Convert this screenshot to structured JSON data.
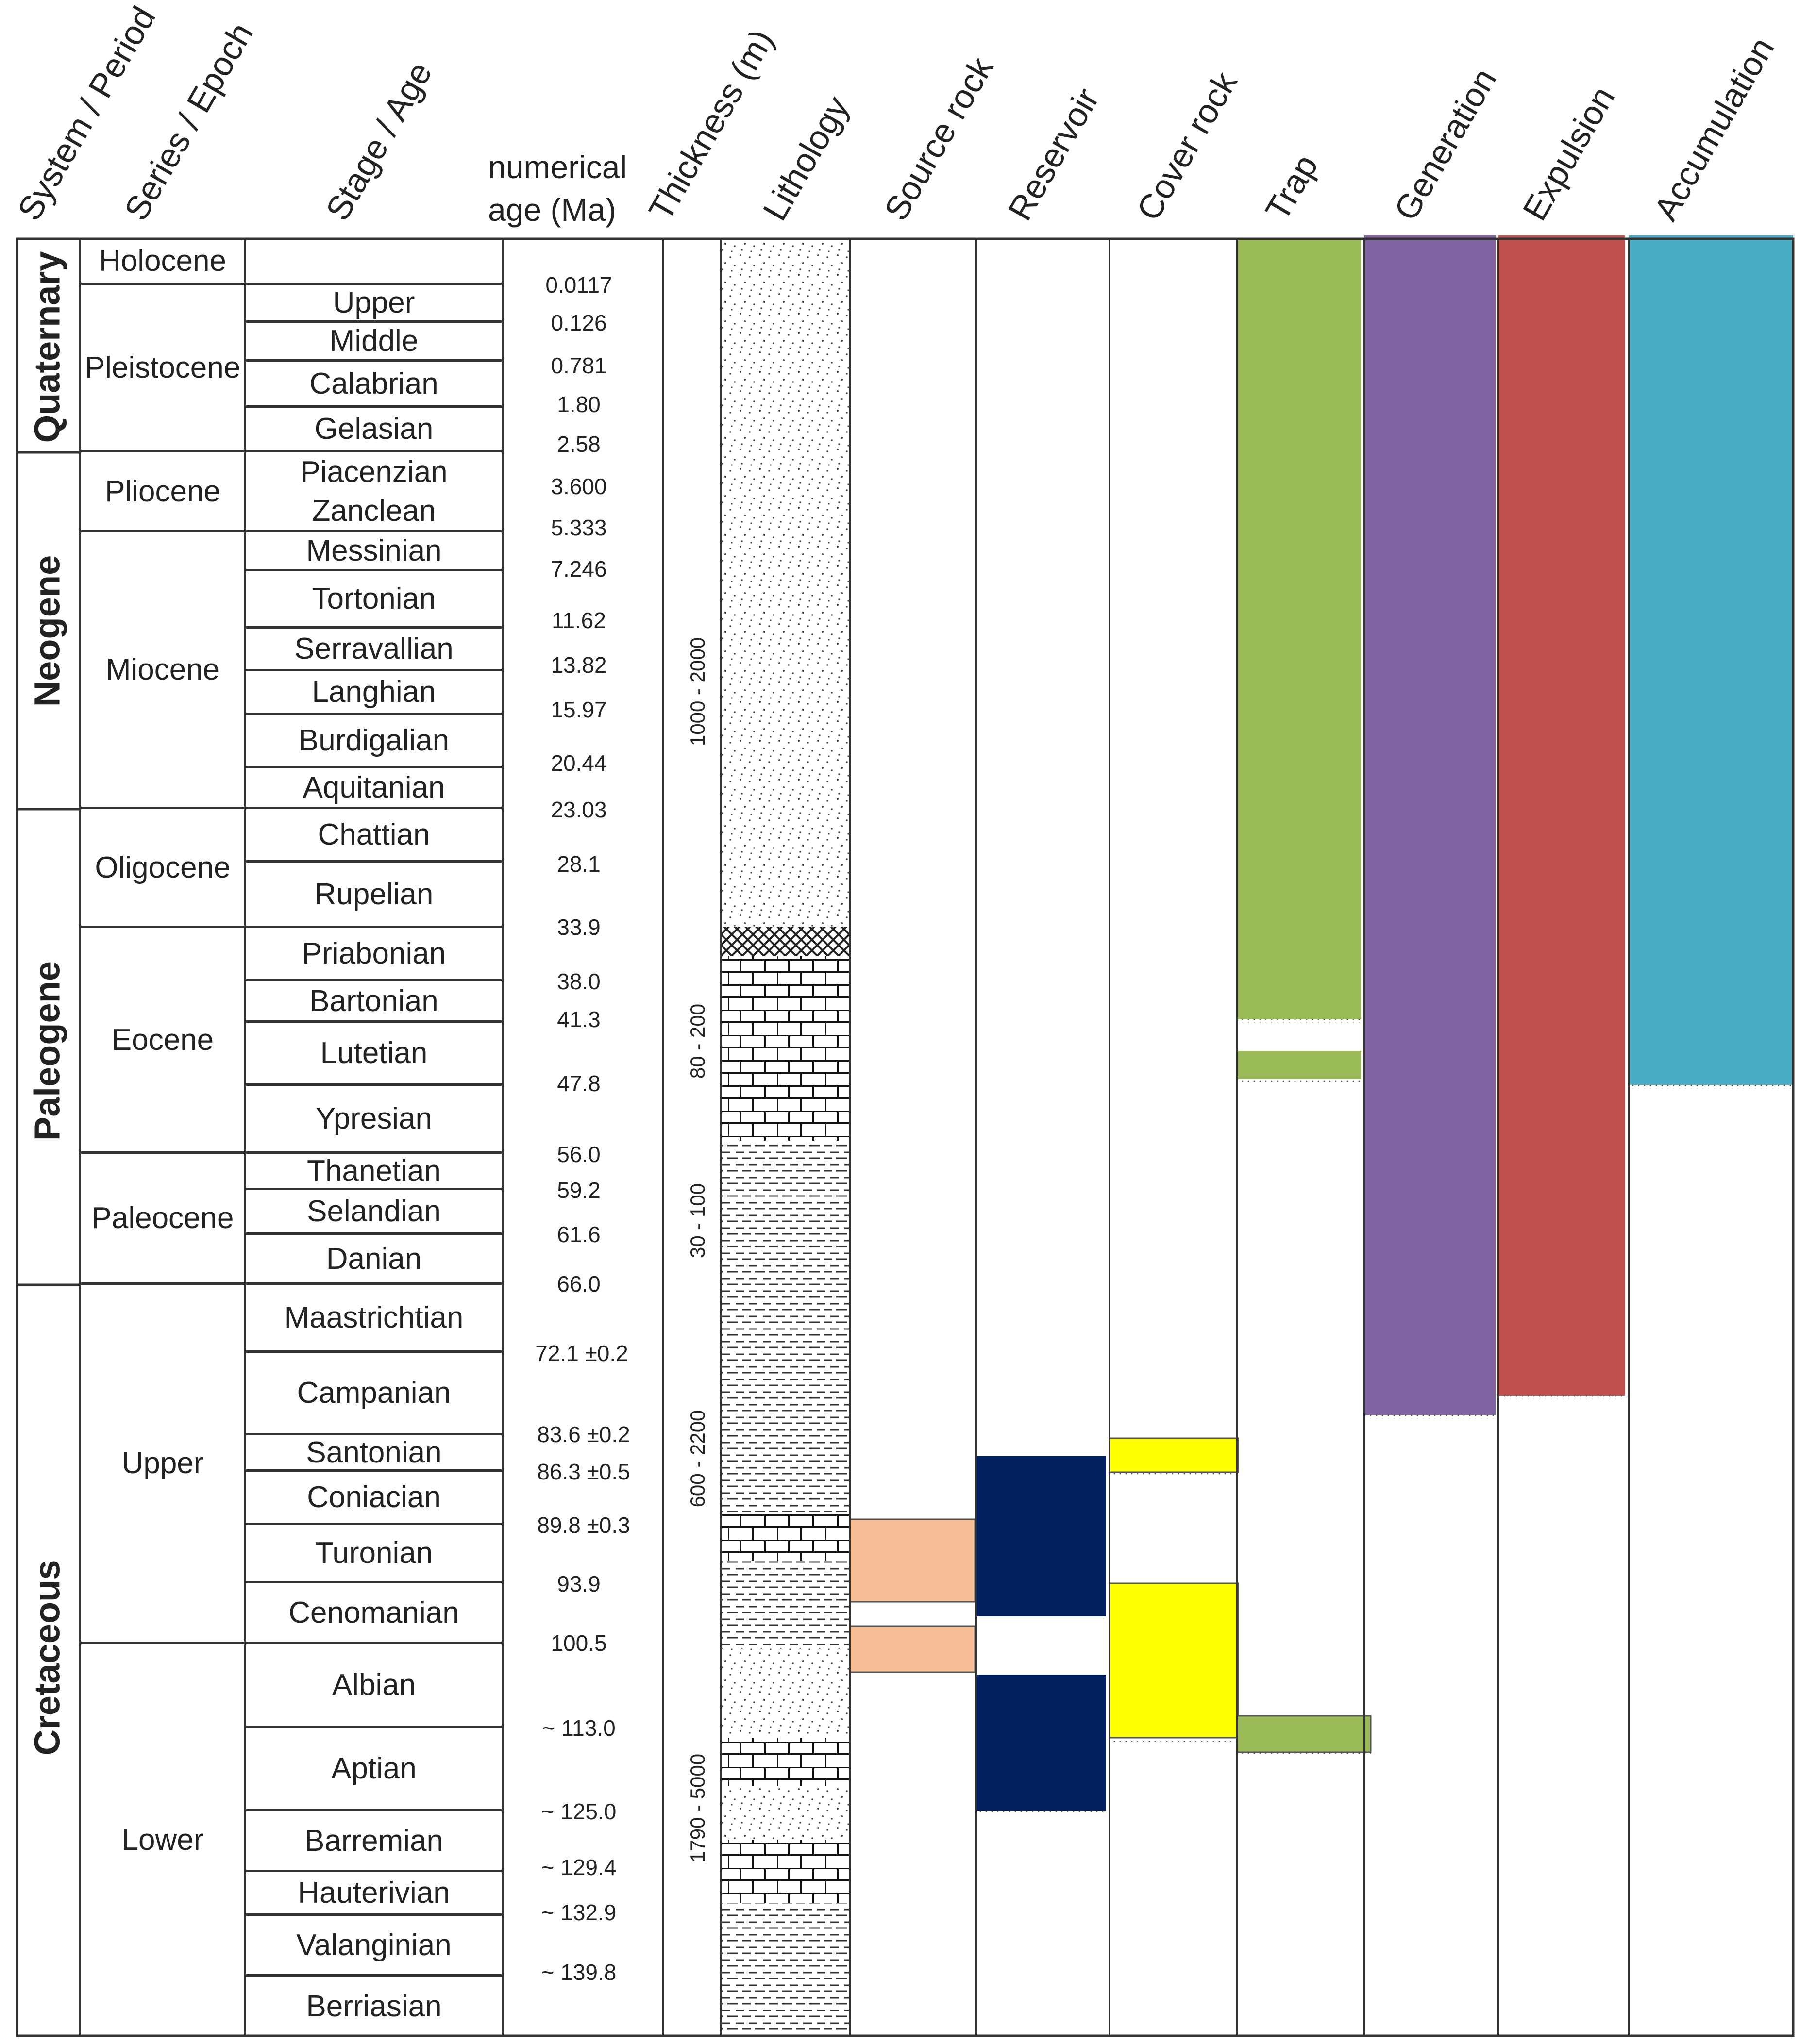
{
  "headers": {
    "system": "System / Period",
    "series": "Series / Epoch",
    "stage": "Stage / Age",
    "numerical_age": "numerical age (Ma)",
    "thickness": "Thickness (m)",
    "lithology": "Lithology",
    "source_rock": "Source rock",
    "reservoir": "Reservoir",
    "cover_rock": "Cover rock",
    "trap": "Trap",
    "generation": "Generation",
    "expulsion": "Expulsion",
    "accumulation": "Accumulation"
  },
  "systems": [
    "Quaternary",
    "Neogene",
    "Paleogene",
    "Cretaceous"
  ],
  "series": [
    "Holocene",
    "Pleistocene",
    "Pliocene",
    "Miocene",
    "Oligocene",
    "Eocene",
    "Paleocene",
    "Upper",
    "Lower"
  ],
  "stages": [
    "Upper",
    "Middle",
    "Calabrian",
    "Gelasian",
    "Piacenzian",
    "Zanclean",
    "Messinian",
    "Tortonian",
    "Serravallian",
    "Langhian",
    "Burdigalian",
    "Aquitanian",
    "Chattian",
    "Rupelian",
    "Priabonian",
    "Bartonian",
    "Lutetian",
    "Ypresian",
    "Thanetian",
    "Selandian",
    "Danian",
    "Maastrichtian",
    "Campanian",
    "Santonian",
    "Coniacian",
    "Turonian",
    "Cenomanian",
    "Albian",
    "Aptian",
    "Barremian",
    "Hauterivian",
    "Valanginian",
    "Berriasian"
  ],
  "numerical_ages": [
    "0.0117",
    "0.126",
    "0.781",
    "1.80",
    "2.58",
    "3.600",
    "5.333",
    "7.246",
    "11.62",
    "13.82",
    "15.97",
    "20.44",
    "23.03",
    "28.1",
    "33.9",
    "38.0",
    "41.3",
    "47.8",
    "56.0",
    "59.2",
    "61.6",
    "66.0",
    "72.1 ±0.2",
    "83.6 ±0.2",
    "86.3 ±0.5",
    "89.8 ±0.3",
    "93.9",
    "100.5",
    "~ 113.0",
    "~ 125.0",
    "~ 129.4",
    "~ 132.9",
    "~ 139.8"
  ],
  "thickness_labels": [
    "1000 - 2000",
    "80 - 200",
    "30 - 100",
    "600 - 2200",
    "1790 - 5000"
  ],
  "colors": {
    "source_rock": "#f7bf95",
    "reservoir": "#002060",
    "cover_rock": "#ffff00",
    "trap": "#9bbb59",
    "generation": "#8064a2",
    "expulsion": "#c0504d",
    "accumulation": "#4bacc6",
    "grid": "#333333"
  }
}
